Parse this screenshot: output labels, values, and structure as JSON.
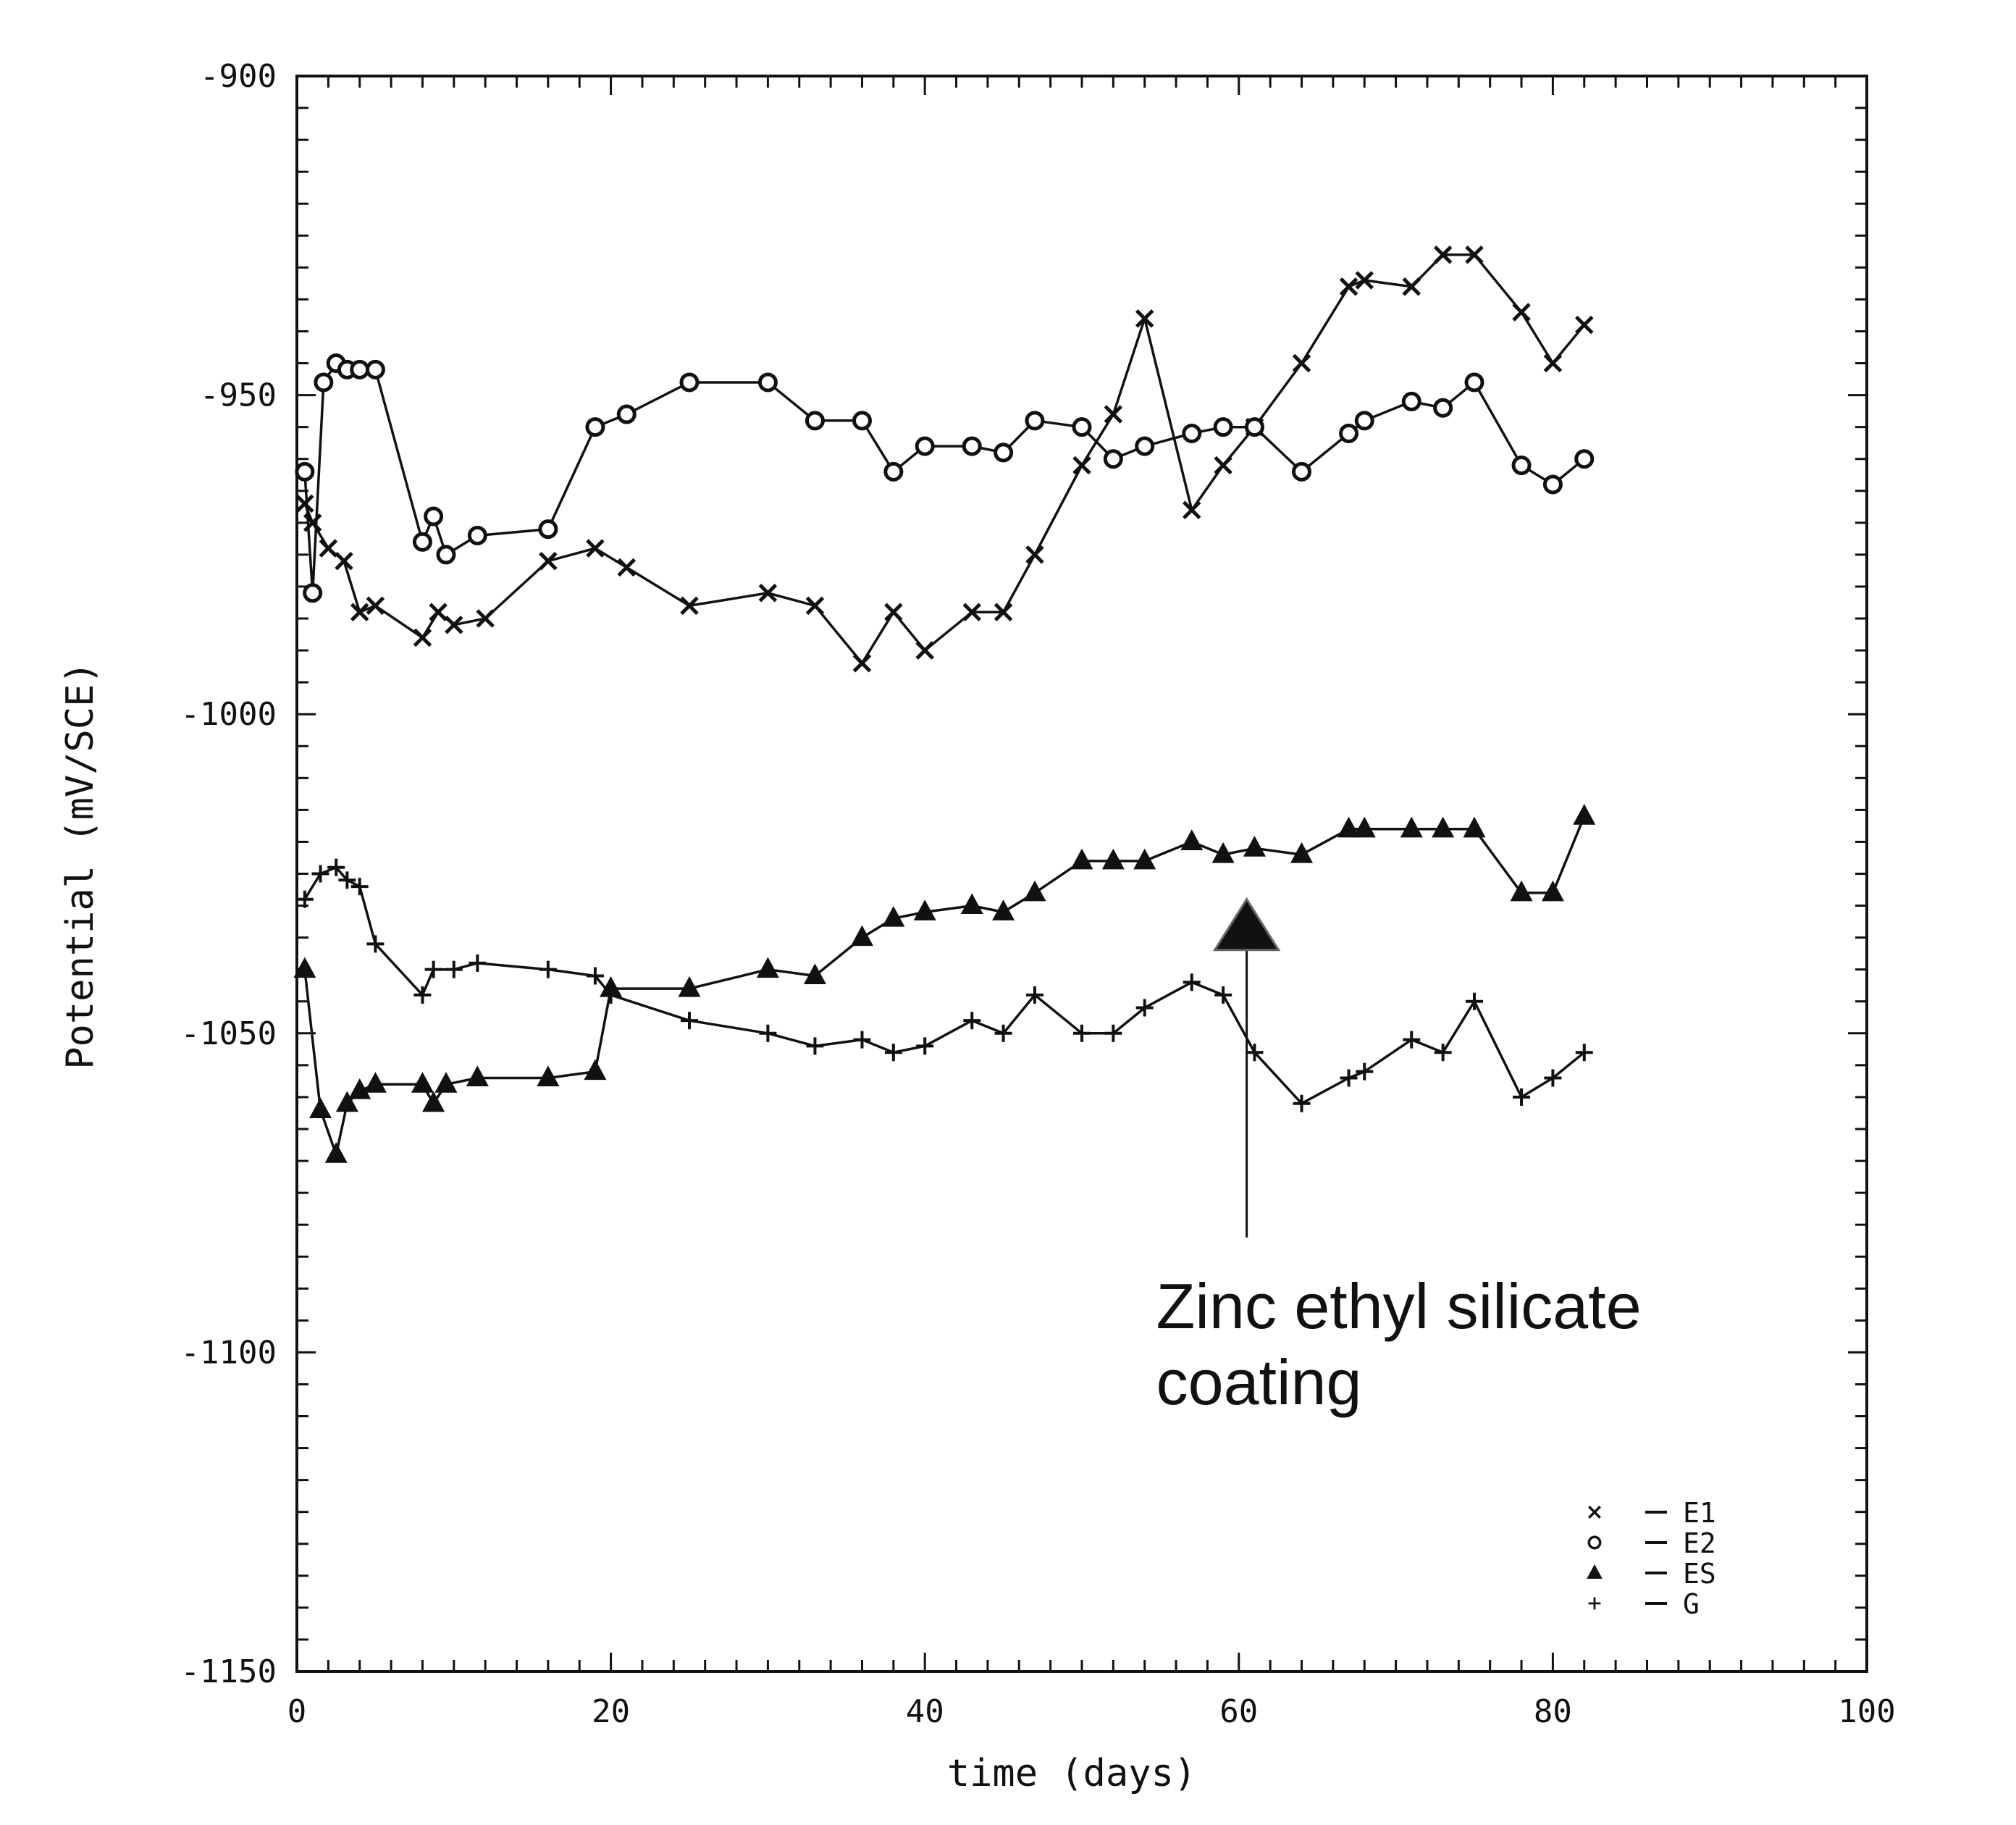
{
  "chart_data": {
    "type": "line",
    "xlabel": "time  (days)",
    "ylabel": "Potential  (mV/SCE)",
    "xlim": [
      0,
      100
    ],
    "ylim": [
      -1150,
      -900
    ],
    "xticks": [
      0,
      20,
      40,
      60,
      80,
      100
    ],
    "xtick_labels": [
      "0",
      "20",
      "40",
      "60",
      "80",
      "100"
    ],
    "yticks": [
      -900,
      -950,
      -1000,
      -1050,
      -1100,
      -1150
    ],
    "ytick_labels": [
      "-900",
      "-950",
      "-1000",
      "-1050",
      "-1100",
      "-1150"
    ],
    "grid": false,
    "legend_position": "bottom-right",
    "series": [
      {
        "name": "E1",
        "marker": "x",
        "x": [
          0.5,
          1,
          2,
          3,
          4,
          5,
          8,
          9,
          10,
          12,
          16,
          19,
          21,
          25,
          30,
          33,
          36,
          38,
          40,
          43,
          45,
          47,
          50,
          52,
          54,
          57,
          59,
          61,
          64,
          67,
          68,
          71,
          73,
          75,
          78,
          80,
          82
        ],
        "y": [
          -967,
          -970,
          -974,
          -976,
          -984,
          -983,
          -988,
          -984,
          -986,
          -985,
          -976,
          -974,
          -977,
          -983,
          -981,
          -983,
          -992,
          -984,
          -990,
          -984,
          -984,
          -975,
          -961,
          -953,
          -938,
          -968,
          -961,
          -955,
          -945,
          -933,
          -932,
          -933,
          -928,
          -928,
          -937,
          -945,
          -939
        ]
      },
      {
        "name": "E2",
        "marker": "o",
        "x": [
          0.5,
          1,
          1.7,
          2.5,
          3.2,
          4,
          5,
          8,
          8.7,
          9.5,
          11.5,
          16,
          19,
          21,
          25,
          30,
          33,
          36,
          38,
          40,
          43,
          45,
          47,
          50,
          52,
          54,
          57,
          59,
          61,
          64,
          67,
          68,
          71,
          73,
          75,
          78,
          80,
          82
        ],
        "y": [
          -962,
          -981,
          -948,
          -945,
          -946,
          -946,
          -946,
          -973,
          -969,
          -975,
          -972,
          -971,
          -955,
          -953,
          -948,
          -948,
          -954,
          -954,
          -962,
          -958,
          -958,
          -959,
          -954,
          -955,
          -960,
          -958,
          -956,
          -955,
          -955,
          -962,
          -956,
          -954,
          -951,
          -952,
          -948,
          -961,
          -964,
          -960
        ]
      },
      {
        "name": "ES",
        "marker": "triangle",
        "x": [
          0.5,
          1.5,
          2.5,
          3.2,
          4,
          5,
          8,
          8.7,
          9.5,
          11.5,
          16,
          19,
          20,
          25,
          30,
          33,
          36,
          38,
          40,
          43,
          45,
          47,
          50,
          52,
          54,
          57,
          59,
          61,
          64,
          67,
          68,
          71,
          73,
          75,
          78,
          80,
          82
        ],
        "y": [
          -1040,
          -1062,
          -1069,
          -1061,
          -1059,
          -1058,
          -1058,
          -1061,
          -1058,
          -1057,
          -1057,
          -1056,
          -1043,
          -1043,
          -1040,
          -1041,
          -1035,
          -1032,
          -1031,
          -1030,
          -1031,
          -1028,
          -1023,
          -1023,
          -1023,
          -1020,
          -1022,
          -1021,
          -1022,
          -1018,
          -1018,
          -1018,
          -1018,
          -1018,
          -1028,
          -1028,
          -1016
        ]
      },
      {
        "name": "G",
        "marker": "+",
        "x": [
          0.5,
          1.5,
          2.5,
          3.2,
          4,
          5,
          8,
          8.7,
          10,
          11.5,
          16,
          19,
          20,
          25,
          30,
          33,
          36,
          38,
          40,
          43,
          45,
          47,
          50,
          52,
          54,
          57,
          59,
          61,
          64,
          67,
          68,
          71,
          73,
          75,
          78,
          80,
          82
        ],
        "y": [
          -1029,
          -1025,
          -1024,
          -1026,
          -1027,
          -1036,
          -1044,
          -1040,
          -1040,
          -1039,
          -1040,
          -1041,
          -1044,
          -1048,
          -1050,
          -1052,
          -1051,
          -1053,
          -1052,
          -1048,
          -1050,
          -1044,
          -1050,
          -1050,
          -1046,
          -1042,
          -1044,
          -1053,
          -1061,
          -1057,
          -1056,
          -1051,
          -1053,
          -1045,
          -1060,
          -1057,
          -1053
        ]
      }
    ],
    "annotations": [
      {
        "text_lines": [
          "Zinc ethyl silicate",
          "coating"
        ],
        "arrow_x": 60.5,
        "arrow_y_from": -1082,
        "arrow_y_to": -1029
      }
    ]
  }
}
